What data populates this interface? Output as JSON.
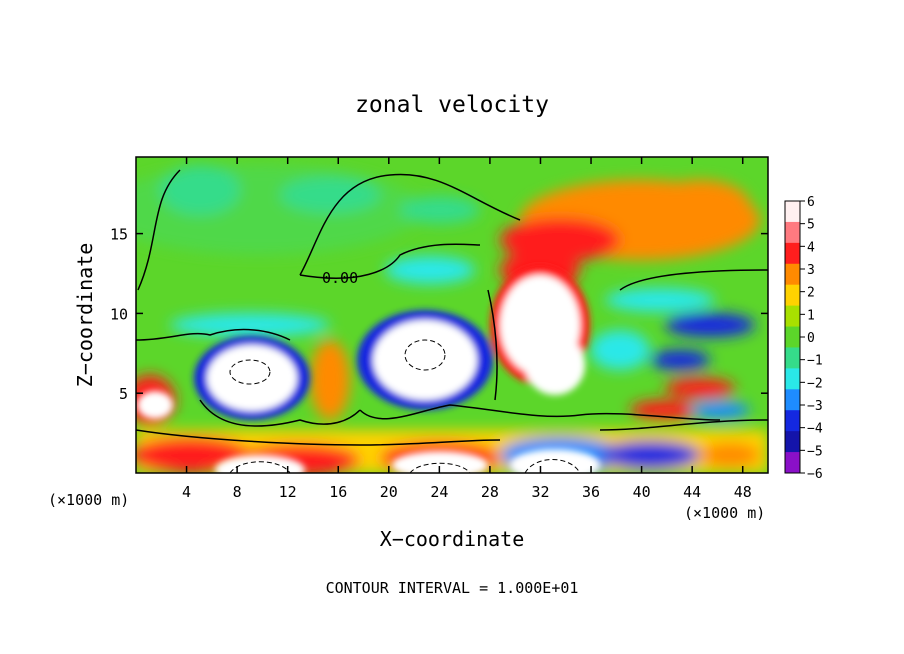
{
  "chart_data": {
    "type": "heatmap",
    "title": "zonal velocity",
    "xlabel": "X−coordinate",
    "ylabel": "Z−coordinate",
    "x_unit_left": "(×1000 m)",
    "x_unit_right": "(×1000 m)",
    "footer": "CONTOUR INTERVAL = 1.000E+01",
    "xlim": [
      0,
      50
    ],
    "ylim": [
      0,
      19.8
    ],
    "x_ticks": [
      4,
      8,
      12,
      16,
      20,
      24,
      28,
      32,
      36,
      40,
      44,
      48
    ],
    "y_ticks": [
      5,
      10,
      15
    ],
    "grid": false,
    "contour_label": "0.00",
    "colorbar": {
      "ticks": [
        6,
        5,
        4,
        3,
        2,
        1,
        0,
        -1,
        -2,
        -3,
        -4,
        -5,
        -6
      ],
      "range": [
        -6,
        6
      ],
      "colors": [
        "#fff0f0",
        "#ff7a80",
        "#ff1e1e",
        "#ff8a00",
        "#ffd200",
        "#a8e000",
        "#5cd62a",
        "#35dc8a",
        "#2ae8e8",
        "#1e8cff",
        "#1428e0",
        "#1414aa",
        "#8a10c8"
      ]
    },
    "features": [
      {
        "kind": "jet",
        "x_range": [
          29,
          50
        ],
        "z_range": [
          11,
          17
        ],
        "peak": 4
      },
      {
        "kind": "eddy",
        "center": [
          10,
          6
        ],
        "max_abs": 6,
        "sign": "negative_ring_positive_core"
      },
      {
        "kind": "eddy",
        "center": [
          24,
          7
        ],
        "max_abs": 6,
        "sign": "negative_ring_positive_core"
      },
      {
        "kind": "eddy",
        "center": [
          33,
          9
        ],
        "max_abs": 6,
        "sign": "positive"
      },
      {
        "kind": "jet",
        "x_range": [
          42,
          48
        ],
        "z_range": [
          8,
          9.5
        ],
        "peak": -4
      },
      {
        "kind": "jet",
        "x_range": [
          40,
          46
        ],
        "z_range": [
          3.5,
          5
        ],
        "peak": 5
      }
    ]
  }
}
